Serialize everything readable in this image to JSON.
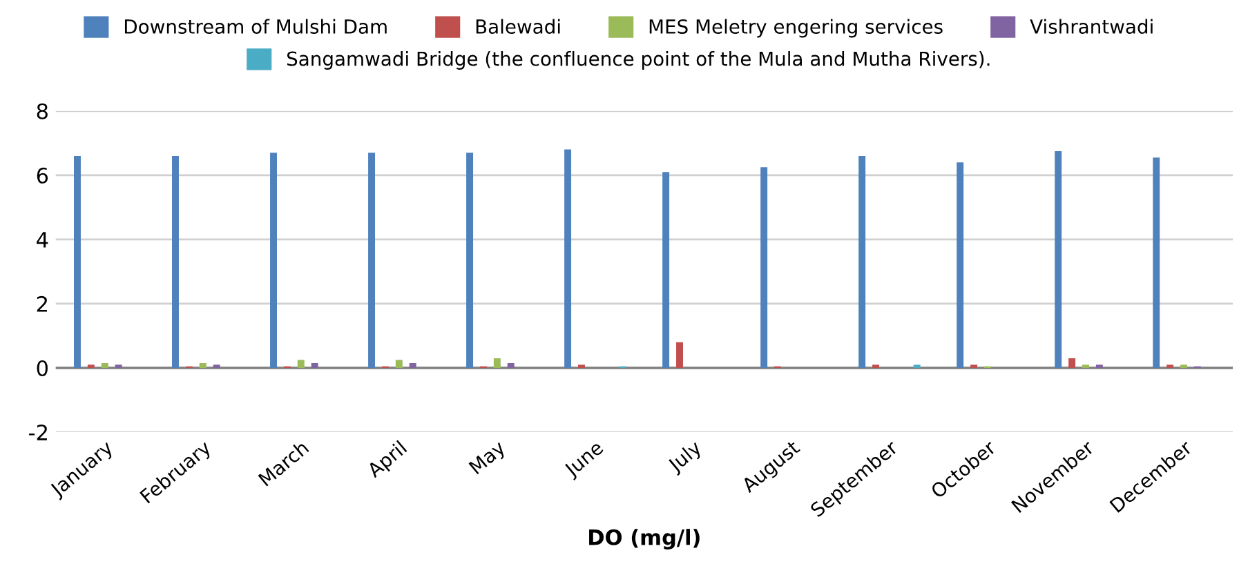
{
  "chart_data": {
    "type": "bar",
    "xlabel": "DO (mg/l)",
    "categories": [
      "January",
      "February",
      "March",
      "April",
      "May",
      "June",
      "July",
      "August",
      "September",
      "October",
      "November",
      "December"
    ],
    "series": [
      {
        "name": "Downstream of Mulshi Dam",
        "color": "#4f81bd",
        "values": [
          6.6,
          6.6,
          6.7,
          6.7,
          6.7,
          6.8,
          6.1,
          6.25,
          6.6,
          6.4,
          6.75,
          6.55
        ]
      },
      {
        "name": "Balewadi",
        "color": "#c0504d",
        "values": [
          0.1,
          0.05,
          0.05,
          0.05,
          0.05,
          0.1,
          0.8,
          0.05,
          0.1,
          0.1,
          0.3,
          0.1
        ]
      },
      {
        "name": "MES Meletry engering services",
        "color": "#9bbb59",
        "values": [
          0.15,
          0.15,
          0.25,
          0.25,
          0.3,
          null,
          null,
          null,
          null,
          0.05,
          0.1,
          0.1
        ]
      },
      {
        "name": "Vishrantwadi",
        "color": "#8064a2",
        "values": [
          0.1,
          0.1,
          0.15,
          0.15,
          0.15,
          null,
          null,
          null,
          null,
          null,
          0.1,
          0.05
        ]
      },
      {
        "name": "Sangamwadi Bridge (the confluence point of the Mula and Mutha Rivers).",
        "color": "#4bacc6",
        "values": [
          null,
          null,
          null,
          null,
          null,
          0.05,
          null,
          null,
          0.1,
          null,
          null,
          null
        ]
      }
    ],
    "ylim": [
      -2,
      8
    ],
    "yticks": [
      -2,
      0,
      2,
      4,
      6,
      8
    ],
    "grid": "y",
    "legend": "top"
  }
}
